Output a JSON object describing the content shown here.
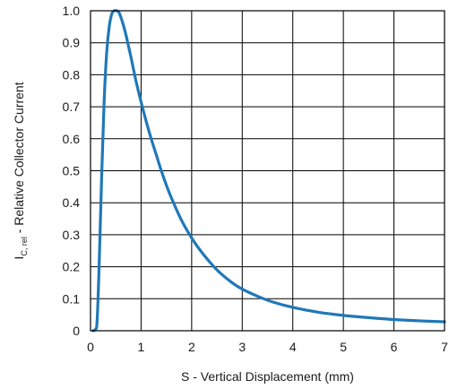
{
  "chart_data": {
    "type": "line",
    "title": "",
    "xlabel": "S - Vertical Displacement (mm)",
    "ylabel": {
      "main": "I",
      "subscript": "C, rel",
      "rest": " - Relative Collector Current"
    },
    "xlim": [
      0,
      7
    ],
    "ylim": [
      0,
      1.0
    ],
    "x_ticks": [
      "0",
      "1",
      "2",
      "3",
      "4",
      "5",
      "6",
      "7"
    ],
    "y_ticks": [
      "0",
      "0.1",
      "0.2",
      "0.3",
      "0.4",
      "0.5",
      "0.6",
      "0.7",
      "0.8",
      "0.9",
      "1.0"
    ],
    "grid": true,
    "series": [
      {
        "color": "#1f78b8",
        "x": [
          0.05,
          0.1,
          0.13,
          0.17,
          0.22,
          0.27,
          0.32,
          0.37,
          0.42,
          0.47,
          0.52,
          0.56,
          0.6,
          0.65,
          0.7,
          0.75,
          0.8,
          0.9,
          1.0,
          1.1,
          1.2,
          1.3,
          1.4,
          1.5,
          1.6,
          1.8,
          2.0,
          2.2,
          2.5,
          2.8,
          3.0,
          3.3,
          3.6,
          4.0,
          4.5,
          5.0,
          5.5,
          6.0,
          6.5,
          7.0
        ],
        "y": [
          0.0,
          0.005,
          0.03,
          0.2,
          0.48,
          0.72,
          0.87,
          0.95,
          0.99,
          1.0,
          1.0,
          0.995,
          0.98,
          0.955,
          0.925,
          0.89,
          0.855,
          0.78,
          0.715,
          0.655,
          0.6,
          0.55,
          0.5,
          0.455,
          0.415,
          0.345,
          0.29,
          0.245,
          0.19,
          0.15,
          0.13,
          0.108,
          0.09,
          0.073,
          0.058,
          0.048,
          0.041,
          0.035,
          0.031,
          0.028
        ]
      }
    ]
  }
}
